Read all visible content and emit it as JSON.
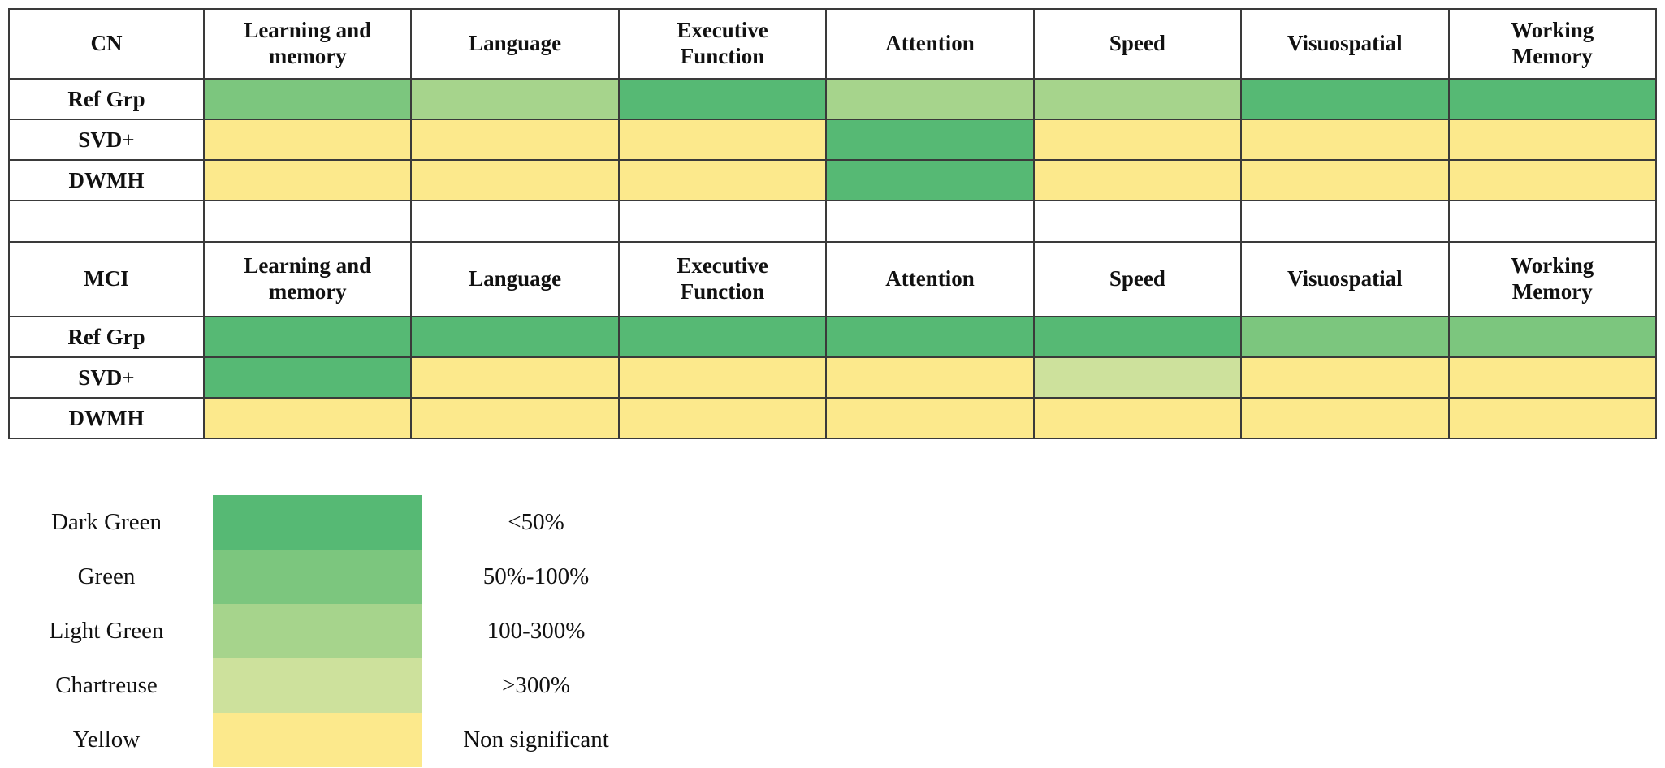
{
  "colors": {
    "dark_green": "#56b974",
    "green": "#7cc67e",
    "light_green": "#a6d48c",
    "chartreuse": "#cde19c",
    "yellow": "#fce98c",
    "border": "#3a3a3a"
  },
  "tables": [
    {
      "corner_label": "CN",
      "columns": [
        "Learning and\nmemory",
        "Language",
        "Executive\nFunction",
        "Attention",
        "Speed",
        "Visuospatial",
        "Working\nMemory"
      ],
      "rows": [
        {
          "label": "Ref Grp",
          "cells": [
            "green",
            "light_green",
            "dark_green",
            "light_green",
            "light_green",
            "dark_green",
            "dark_green"
          ]
        },
        {
          "label": "SVD+",
          "cells": [
            "yellow",
            "yellow",
            "yellow",
            "dark_green",
            "yellow",
            "yellow",
            "yellow"
          ]
        },
        {
          "label": "DWMH",
          "cells": [
            "yellow",
            "yellow",
            "yellow",
            "dark_green",
            "yellow",
            "yellow",
            "yellow"
          ]
        }
      ]
    },
    {
      "corner_label": "MCI",
      "columns": [
        "Learning and\nmemory",
        "Language",
        "Executive\nFunction",
        "Attention",
        "Speed",
        "Visuospatial",
        "Working\nMemory"
      ],
      "rows": [
        {
          "label": "Ref Grp",
          "cells": [
            "dark_green",
            "dark_green",
            "dark_green",
            "dark_green",
            "dark_green",
            "green",
            "green"
          ]
        },
        {
          "label": "SVD+",
          "cells": [
            "dark_green",
            "yellow",
            "yellow",
            "yellow",
            "chartreuse",
            "yellow",
            "yellow"
          ]
        },
        {
          "label": "DWMH",
          "cells": [
            "yellow",
            "yellow",
            "yellow",
            "yellow",
            "yellow",
            "yellow",
            "yellow"
          ]
        }
      ]
    }
  ],
  "legend": {
    "entries": [
      {
        "name": "Dark Green",
        "color": "dark_green",
        "range": "<50%"
      },
      {
        "name": "Green",
        "color": "green",
        "range": "50%-100%"
      },
      {
        "name": "Light Green",
        "color": "light_green",
        "range": "100-300%"
      },
      {
        "name": "Chartreuse",
        "color": "chartreuse",
        "range": ">300%"
      },
      {
        "name": "Yellow",
        "color": "yellow",
        "range": "Non significant"
      }
    ]
  },
  "chart_data": {
    "type": "heatmap",
    "value_scale": {
      "Dark Green": "<50%",
      "Green": "50%-100%",
      "Light Green": "100-300%",
      "Chartreuse": ">300%",
      "Yellow": "Non significant"
    },
    "columns": [
      "Learning and memory",
      "Language",
      "Executive Function",
      "Attention",
      "Speed",
      "Visuospatial",
      "Working Memory"
    ],
    "groups": [
      {
        "group": "CN",
        "rows": [
          {
            "label": "Ref Grp",
            "values": [
              "50%-100%",
              "100-300%",
              "<50%",
              "100-300%",
              "100-300%",
              "<50%",
              "<50%"
            ]
          },
          {
            "label": "SVD+",
            "values": [
              "Non significant",
              "Non significant",
              "Non significant",
              "<50%",
              "Non significant",
              "Non significant",
              "Non significant"
            ]
          },
          {
            "label": "DWMH",
            "values": [
              "Non significant",
              "Non significant",
              "Non significant",
              "<50%",
              "Non significant",
              "Non significant",
              "Non significant"
            ]
          }
        ]
      },
      {
        "group": "MCI",
        "rows": [
          {
            "label": "Ref Grp",
            "values": [
              "<50%",
              "<50%",
              "<50%",
              "<50%",
              "<50%",
              "50%-100%",
              "50%-100%"
            ]
          },
          {
            "label": "SVD+",
            "values": [
              "<50%",
              "Non significant",
              "Non significant",
              "Non significant",
              ">300%",
              "Non significant",
              "Non significant"
            ]
          },
          {
            "label": "DWMH",
            "values": [
              "Non significant",
              "Non significant",
              "Non significant",
              "Non significant",
              "Non significant",
              "Non significant",
              "Non significant"
            ]
          }
        ]
      }
    ],
    "legend_position": "bottom-left",
    "title": "",
    "grid": true
  }
}
